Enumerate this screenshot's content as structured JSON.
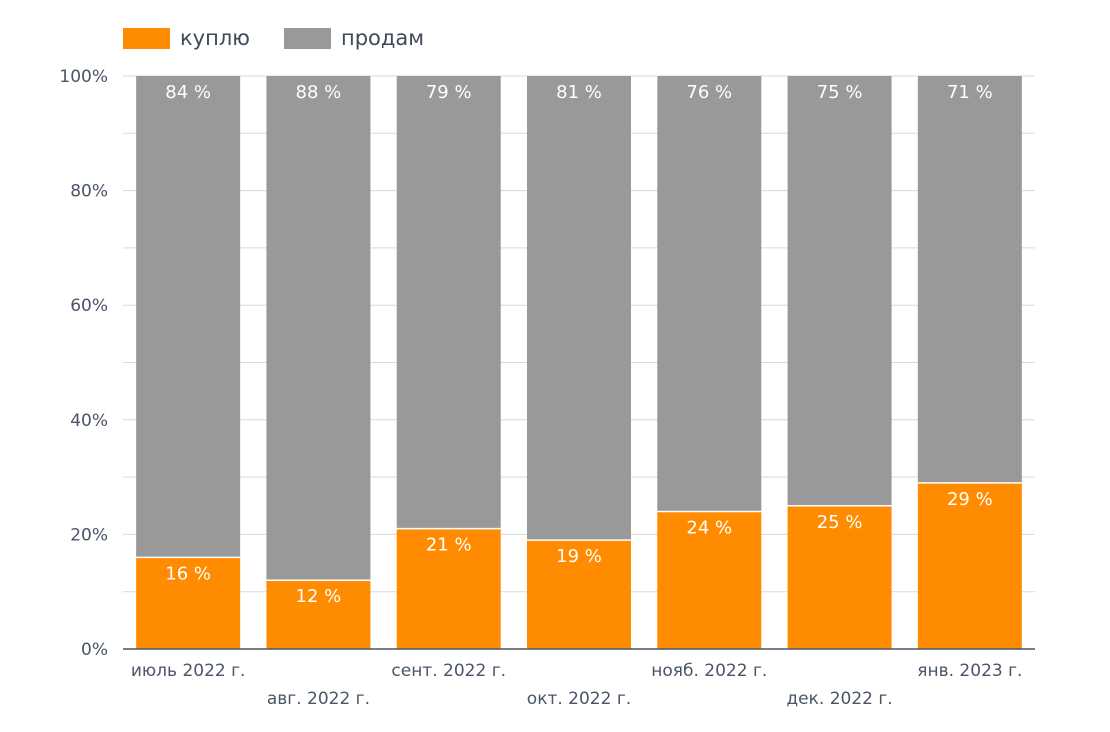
{
  "legend": {
    "buy_label": "куплю",
    "sell_label": "продам"
  },
  "colors": {
    "buy": "#ff8c00",
    "sell": "#999999",
    "axis": "#4a5568",
    "grid": "#d9d9d9"
  },
  "chart_data": {
    "type": "bar",
    "stacked": true,
    "categories": [
      "июль 2022 г.",
      "авг. 2022 г.",
      "сент. 2022 г.",
      "окт. 2022 г.",
      "нояб. 2022 г.",
      "дек. 2022 г.",
      "янв. 2023 г."
    ],
    "series": [
      {
        "name": "куплю",
        "values": [
          16,
          12,
          21,
          19,
          24,
          25,
          29
        ],
        "labels": [
          "16 %",
          "12 %",
          "21 %",
          "19 %",
          "24 %",
          "25 %",
          "29 %"
        ]
      },
      {
        "name": "продам",
        "values": [
          84,
          88,
          79,
          81,
          76,
          75,
          71
        ],
        "labels": [
          "84 %",
          "88 %",
          "79 %",
          "81 %",
          "76 %",
          "75 %",
          "71 %"
        ]
      }
    ],
    "y_ticks": [
      "0%",
      "20%",
      "40%",
      "60%",
      "80%",
      "100%"
    ],
    "ylim": [
      0,
      100
    ],
    "grid": true,
    "legend_position": "top-left"
  }
}
